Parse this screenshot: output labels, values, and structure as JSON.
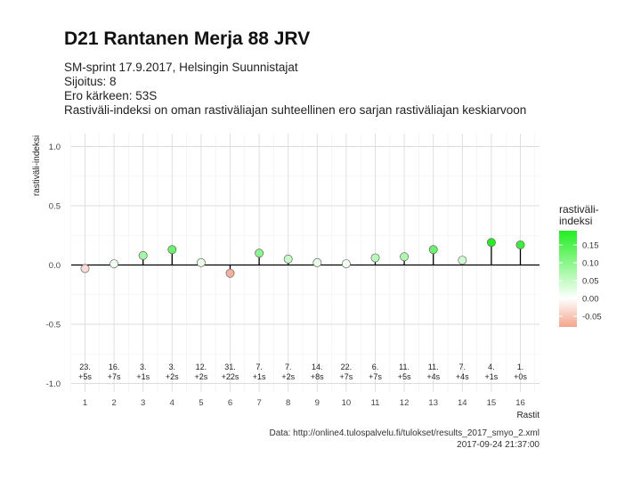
{
  "header": {
    "title": "D21 Rantanen Merja 88 JRV",
    "subtitle_lines": [
      "SM-sprint 17.9.2017, Helsingin Suunnistajat",
      "Sijoitus: 8",
      "Ero kärkeen: 53S",
      "Rastiväli-indeksi on oman rastiväliajan suhteellinen ero sarjan rastiväliajan keskiarvoon"
    ]
  },
  "caption": {
    "source": "Data: http://online4.tulospalvelu.fi/tulokset/results_2017_smyo_2.xml",
    "timestamp": "2017-09-24 21:37:00"
  },
  "chart_data": {
    "type": "scatter",
    "style": "lollipop",
    "xlabel": "Rastit",
    "ylabel": "rastiväli-indeksi",
    "ylim": [
      -1.0,
      1.0
    ],
    "yticks": [
      -1.0,
      -0.5,
      0.0,
      0.5,
      1.0
    ],
    "ytick_labels": [
      "-1.0",
      "-0.5",
      "0.0",
      "0.5",
      "1.0"
    ],
    "grid": true,
    "x": [
      1,
      2,
      3,
      4,
      5,
      6,
      7,
      8,
      9,
      10,
      11,
      12,
      13,
      14,
      15,
      16
    ],
    "values": [
      -0.03,
      0.01,
      0.08,
      0.13,
      0.02,
      -0.07,
      0.1,
      0.05,
      0.02,
      0.01,
      0.06,
      0.07,
      0.13,
      0.04,
      0.19,
      0.17
    ],
    "annotations": [
      {
        "rank": "23.",
        "diff": "+5s"
      },
      {
        "rank": "16.",
        "diff": "+7s"
      },
      {
        "rank": "3.",
        "diff": "+1s"
      },
      {
        "rank": "3.",
        "diff": "+2s"
      },
      {
        "rank": "12.",
        "diff": "+2s"
      },
      {
        "rank": "31.",
        "diff": "+22s"
      },
      {
        "rank": "7.",
        "diff": "+1s"
      },
      {
        "rank": "7.",
        "diff": "+2s"
      },
      {
        "rank": "14.",
        "diff": "+8s"
      },
      {
        "rank": "22.",
        "diff": "+7s"
      },
      {
        "rank": "6.",
        "diff": "+7s"
      },
      {
        "rank": "11.",
        "diff": "+5s"
      },
      {
        "rank": "11.",
        "diff": "+4s"
      },
      {
        "rank": "7.",
        "diff": "+4s"
      },
      {
        "rank": "4.",
        "diff": "+1s"
      },
      {
        "rank": "1.",
        "diff": "+0s"
      }
    ],
    "legend": {
      "title_lines": [
        "rastiväli-",
        "indeksi"
      ],
      "position": "right",
      "range": [
        -0.08,
        0.19
      ],
      "ticks": [
        0.15,
        0.1,
        0.05,
        0.0,
        -0.05
      ],
      "tick_labels": [
        "0.15",
        "0.10",
        "0.05",
        "0.00",
        "-0.05"
      ],
      "colors": {
        "low": "#f4a58a",
        "mid": "#ffffff",
        "high": "#22ee22"
      }
    }
  }
}
